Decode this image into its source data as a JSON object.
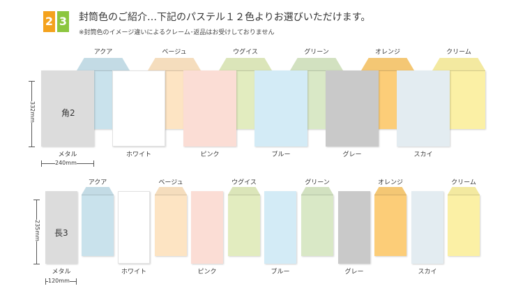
{
  "header": {
    "badges": [
      {
        "text": "2",
        "color": "#f4a21d"
      },
      {
        "text": "3",
        "color": "#8cc63f"
      }
    ],
    "title": "封筒色のご紹介…下記のパステル１２色よりお選びいただけます。",
    "note": "※封筒色のイメージ違いによるクレーム･返品はお受けしておりません"
  },
  "row1": {
    "size_name": "角2",
    "height_dim": "332mm",
    "width_dim": "240mm",
    "envelopes": [
      {
        "name": "メタル",
        "color": "#dcdcdc"
      },
      {
        "name": "アクア",
        "color": "#c9e2ec"
      },
      {
        "name": "ホワイト",
        "color": "#ffffff"
      },
      {
        "name": "ベージュ",
        "color": "#fde4c3"
      },
      {
        "name": "ピンク",
        "color": "#fbddd5"
      },
      {
        "name": "ウグイス",
        "color": "#e2ecbf"
      },
      {
        "name": "ブルー",
        "color": "#d3ebf6"
      },
      {
        "name": "グリーン",
        "color": "#d9e8c6"
      },
      {
        "name": "グレー",
        "color": "#c9c9c9"
      },
      {
        "name": "オレンジ",
        "color": "#fccd78"
      },
      {
        "name": "スカイ",
        "color": "#e3ecf1"
      },
      {
        "name": "クリーム",
        "color": "#fbf0a5"
      }
    ]
  },
  "row2": {
    "size_name": "長3",
    "height_dim": "235mm",
    "width_dim": "120mm",
    "envelopes": [
      {
        "name": "メタル",
        "color": "#dcdcdc"
      },
      {
        "name": "アクア",
        "color": "#c9e2ec"
      },
      {
        "name": "ホワイト",
        "color": "#ffffff"
      },
      {
        "name": "ベージュ",
        "color": "#fde4c3"
      },
      {
        "name": "ピンク",
        "color": "#fbddd5"
      },
      {
        "name": "ウグイス",
        "color": "#e2ecbf"
      },
      {
        "name": "ブルー",
        "color": "#d3ebf6"
      },
      {
        "name": "グリーン",
        "color": "#d9e8c6"
      },
      {
        "name": "グレー",
        "color": "#c9c9c9"
      },
      {
        "name": "オレンジ",
        "color": "#fccd78"
      },
      {
        "name": "スカイ",
        "color": "#e3ecf1"
      },
      {
        "name": "クリーム",
        "color": "#fbf0a5"
      }
    ]
  }
}
